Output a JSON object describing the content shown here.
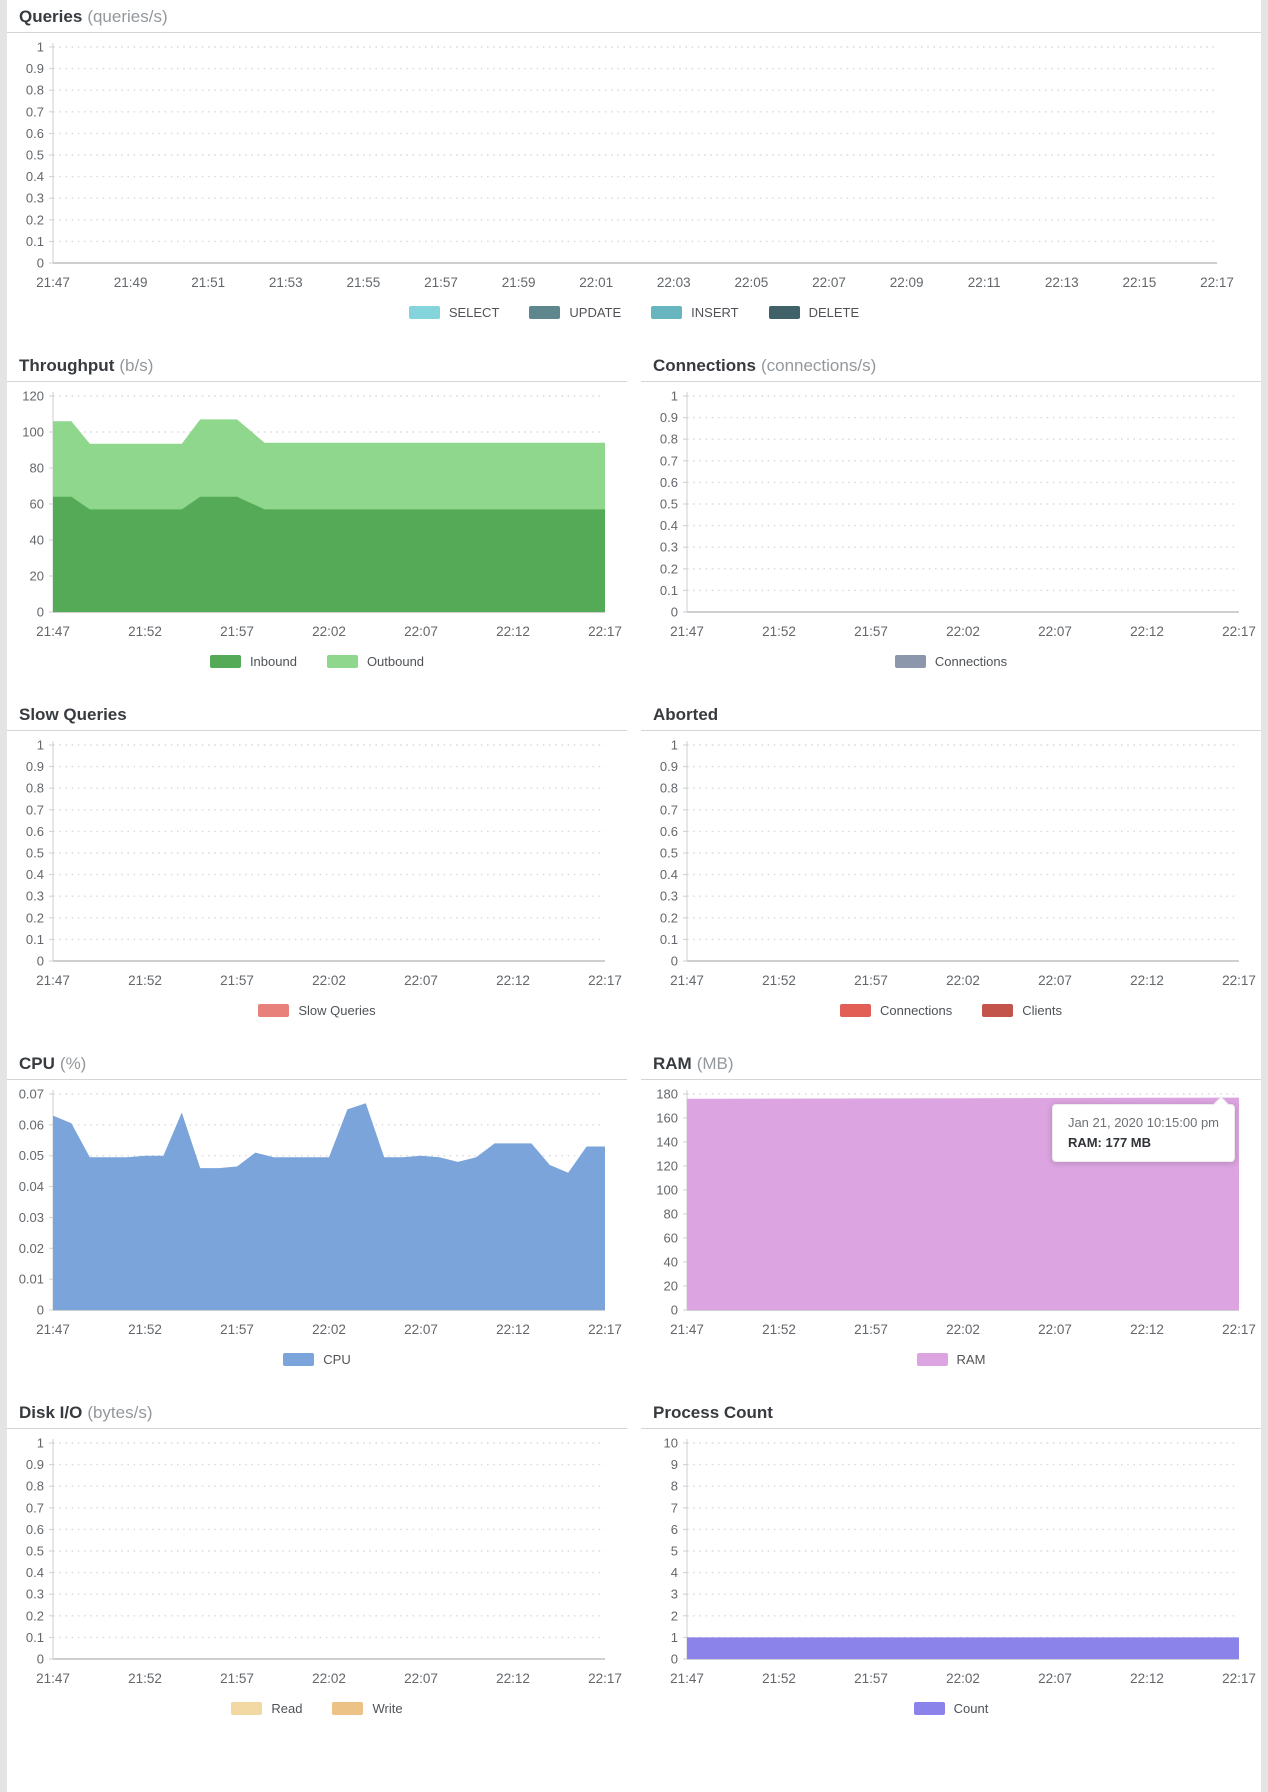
{
  "charts": [
    {
      "title": "Queries",
      "unit": "(queries/s)",
      "span": "full",
      "type": "area",
      "grid": "dotted",
      "ylim": [
        0,
        1
      ],
      "ytick_labels": [
        "1",
        "0.9",
        "0.8",
        "0.7",
        "0.6",
        "0.5",
        "0.4",
        "0.3",
        "0.2",
        "0.1",
        "0"
      ],
      "xtick_labels": [
        "21:47",
        "21:49",
        "21:51",
        "21:53",
        "21:55",
        "21:57",
        "21:59",
        "22:01",
        "22:03",
        "22:05",
        "22:07",
        "22:09",
        "22:11",
        "22:13",
        "22:15",
        "22:17"
      ],
      "x_range_minutes": 30,
      "series": [
        {
          "name": "SELECT",
          "color": "#84d4dc",
          "points": []
        },
        {
          "name": "UPDATE",
          "color": "#5e868d",
          "points": []
        },
        {
          "name": "INSERT",
          "color": "#67b6bf",
          "points": []
        },
        {
          "name": "DELETE",
          "color": "#406168",
          "points": []
        }
      ]
    },
    {
      "title": "Throughput",
      "unit": "(b/s)",
      "span": "half",
      "type": "area",
      "stacked": true,
      "grid": "dotted",
      "ylim": [
        0,
        120
      ],
      "ytick_labels": [
        "120",
        "100",
        "80",
        "60",
        "40",
        "20",
        "0"
      ],
      "xtick_labels": [
        "21:47",
        "21:52",
        "21:57",
        "22:02",
        "22:07",
        "22:12",
        "22:17"
      ],
      "x_range_minutes": 30,
      "series": [
        {
          "name": "Inbound",
          "color": "#54aa56",
          "points": [
            [
              0,
              64
            ],
            [
              1,
              64
            ],
            [
              2,
              57
            ],
            [
              7,
              57
            ],
            [
              8,
              64
            ],
            [
              10,
              64
            ],
            [
              11.5,
              57
            ],
            [
              30,
              57
            ]
          ]
        },
        {
          "name": "Outbound",
          "color": "#8fd78c",
          "points": [
            [
              0,
              42
            ],
            [
              1,
              42
            ],
            [
              2,
              36.5
            ],
            [
              7,
              36.5
            ],
            [
              8,
              43
            ],
            [
              10,
              43
            ],
            [
              11.5,
              37
            ],
            [
              30,
              37
            ]
          ]
        }
      ]
    },
    {
      "title": "Connections",
      "unit": "(connections/s)",
      "span": "half",
      "type": "area",
      "grid": "dotted",
      "ylim": [
        0,
        1
      ],
      "ytick_labels": [
        "1",
        "0.9",
        "0.8",
        "0.7",
        "0.6",
        "0.5",
        "0.4",
        "0.3",
        "0.2",
        "0.1",
        "0"
      ],
      "xtick_labels": [
        "21:47",
        "21:52",
        "21:57",
        "22:02",
        "22:07",
        "22:12",
        "22:17"
      ],
      "x_range_minutes": 30,
      "series": [
        {
          "name": "Connections",
          "color": "#8d97ac",
          "points": []
        }
      ]
    },
    {
      "title": "Slow Queries",
      "unit": "",
      "span": "half",
      "type": "area",
      "grid": "dotted",
      "ylim": [
        0,
        1
      ],
      "ytick_labels": [
        "1",
        "0.9",
        "0.8",
        "0.7",
        "0.6",
        "0.5",
        "0.4",
        "0.3",
        "0.2",
        "0.1",
        "0"
      ],
      "xtick_labels": [
        "21:47",
        "21:52",
        "21:57",
        "22:02",
        "22:07",
        "22:12",
        "22:17"
      ],
      "x_range_minutes": 30,
      "series": [
        {
          "name": "Slow Queries",
          "color": "#e8817a",
          "points": []
        }
      ]
    },
    {
      "title": "Aborted",
      "unit": "",
      "span": "half",
      "type": "area",
      "grid": "dotted",
      "ylim": [
        0,
        1
      ],
      "ytick_labels": [
        "1",
        "0.9",
        "0.8",
        "0.7",
        "0.6",
        "0.5",
        "0.4",
        "0.3",
        "0.2",
        "0.1",
        "0"
      ],
      "xtick_labels": [
        "21:47",
        "21:52",
        "21:57",
        "22:02",
        "22:07",
        "22:12",
        "22:17"
      ],
      "x_range_minutes": 30,
      "series": [
        {
          "name": "Connections",
          "color": "#e15f55",
          "points": []
        },
        {
          "name": "Clients",
          "color": "#c3544c",
          "points": []
        }
      ]
    },
    {
      "title": "CPU",
      "unit": "(%)",
      "span": "half",
      "type": "area",
      "grid": "dotted",
      "ylim": [
        0,
        0.07
      ],
      "ytick_labels": [
        "0.07",
        "0.06",
        "0.05",
        "0.04",
        "0.03",
        "0.02",
        "0.01",
        "0"
      ],
      "xtick_labels": [
        "21:47",
        "21:52",
        "21:57",
        "22:02",
        "22:07",
        "22:12",
        "22:17"
      ],
      "x_range_minutes": 30,
      "series": [
        {
          "name": "CPU",
          "color": "#7ba4da",
          "points": [
            [
              0,
              0.063
            ],
            [
              1,
              0.0605
            ],
            [
              2,
              0.0495
            ],
            [
              3,
              0.0495
            ],
            [
              4,
              0.0495
            ],
            [
              5,
              0.05
            ],
            [
              6,
              0.05
            ],
            [
              7,
              0.064
            ],
            [
              8,
              0.046
            ],
            [
              9,
              0.046
            ],
            [
              10,
              0.0465
            ],
            [
              11,
              0.051
            ],
            [
              12,
              0.0495
            ],
            [
              13,
              0.0495
            ],
            [
              14,
              0.0495
            ],
            [
              15,
              0.0495
            ],
            [
              16,
              0.065
            ],
            [
              17,
              0.067
            ],
            [
              18,
              0.0495
            ],
            [
              19,
              0.0495
            ],
            [
              20,
              0.05
            ],
            [
              21,
              0.0495
            ],
            [
              22,
              0.048
            ],
            [
              23,
              0.0495
            ],
            [
              24,
              0.054
            ],
            [
              25,
              0.054
            ],
            [
              26,
              0.054
            ],
            [
              27,
              0.047
            ],
            [
              28,
              0.0445
            ],
            [
              29,
              0.053
            ],
            [
              30,
              0.053
            ]
          ]
        }
      ]
    },
    {
      "title": "RAM",
      "unit": "(MB)",
      "span": "half",
      "type": "area",
      "grid": "dotted",
      "ylim": [
        0,
        180
      ],
      "ytick_labels": [
        "180",
        "160",
        "140",
        "120",
        "100",
        "80",
        "60",
        "40",
        "20",
        "0"
      ],
      "xtick_labels": [
        "21:47",
        "21:52",
        "21:57",
        "22:02",
        "22:07",
        "22:12",
        "22:17"
      ],
      "x_range_minutes": 30,
      "series": [
        {
          "name": "RAM",
          "color": "#dca4e0",
          "points": [
            [
              0,
              176
            ],
            [
              15,
              176.5
            ],
            [
              30,
              177
            ]
          ]
        }
      ],
      "tooltip": {
        "line1": "Jan 21, 2020 10:15:00 pm",
        "line2": "RAM: 177 MB"
      }
    },
    {
      "title": "Disk I/O",
      "unit": "(bytes/s)",
      "span": "half",
      "type": "area",
      "grid": "dotted",
      "ylim": [
        0,
        1
      ],
      "ytick_labels": [
        "1",
        "0.9",
        "0.8",
        "0.7",
        "0.6",
        "0.5",
        "0.4",
        "0.3",
        "0.2",
        "0.1",
        "0"
      ],
      "xtick_labels": [
        "21:47",
        "21:52",
        "21:57",
        "22:02",
        "22:07",
        "22:12",
        "22:17"
      ],
      "x_range_minutes": 30,
      "series": [
        {
          "name": "Read",
          "color": "#f2d8a3",
          "points": []
        },
        {
          "name": "Write",
          "color": "#edc286",
          "points": []
        }
      ]
    },
    {
      "title": "Process Count",
      "unit": "",
      "span": "half",
      "type": "area",
      "grid": "dotted",
      "ylim": [
        0,
        10
      ],
      "ytick_labels": [
        "10",
        "9",
        "8",
        "7",
        "6",
        "5",
        "4",
        "3",
        "2",
        "1",
        "0"
      ],
      "xtick_labels": [
        "21:47",
        "21:52",
        "21:57",
        "22:02",
        "22:07",
        "22:12",
        "22:17"
      ],
      "x_range_minutes": 30,
      "series": [
        {
          "name": "Count",
          "color": "#8b83e9",
          "points": [
            [
              0,
              1
            ],
            [
              30,
              1
            ]
          ]
        }
      ]
    }
  ]
}
